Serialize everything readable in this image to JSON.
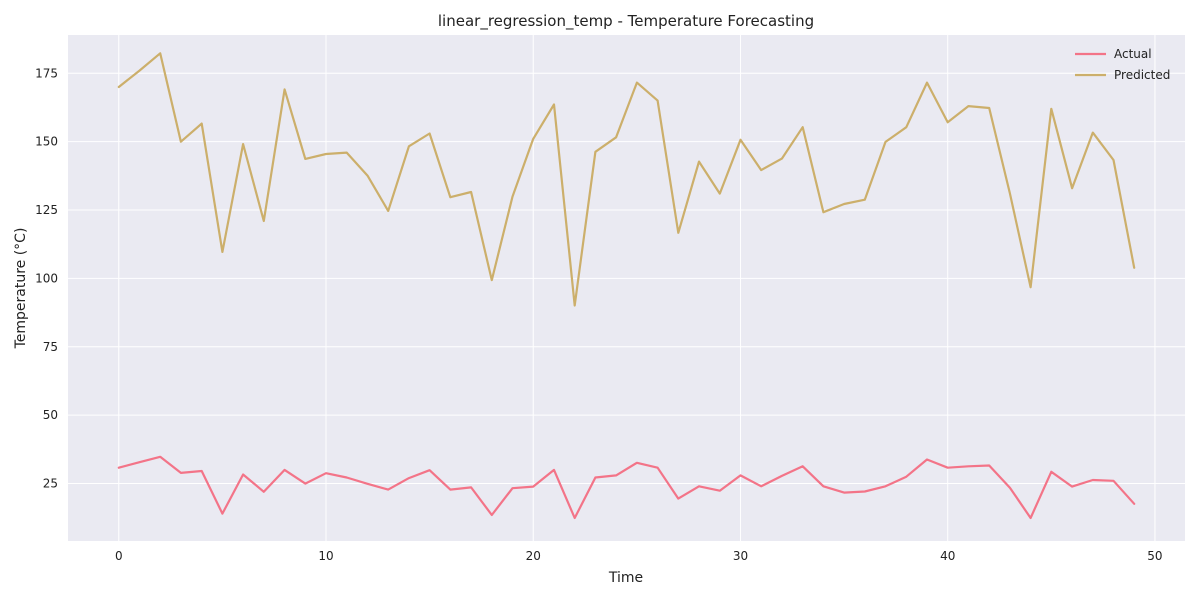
{
  "chart_data": {
    "type": "line",
    "title": "linear_regression_temp - Temperature Forecasting",
    "xlabel": "Time",
    "ylabel": "Temperature (°C)",
    "xlim": [
      -2.45,
      51.45
    ],
    "ylim": [
      4,
      189
    ],
    "xticks": [
      "0",
      "10",
      "20",
      "30",
      "40",
      "50"
    ],
    "yticks": [
      "25",
      "50",
      "75",
      "100",
      "125",
      "150",
      "175"
    ],
    "grid": true,
    "legend_position": "top-right",
    "background_color": "#eaeaf2",
    "x": [
      0,
      1,
      2,
      3,
      4,
      5,
      6,
      7,
      8,
      9,
      10,
      11,
      12,
      13,
      14,
      15,
      16,
      17,
      18,
      19,
      20,
      21,
      22,
      23,
      24,
      25,
      26,
      27,
      28,
      29,
      30,
      31,
      32,
      33,
      34,
      35,
      36,
      37,
      38,
      39,
      40,
      41,
      42,
      43,
      44,
      45,
      46,
      47,
      48,
      49
    ],
    "series": [
      {
        "name": "Actual",
        "color": "#f37488",
        "values": [
          30.8,
          32.8,
          34.8,
          28.9,
          29.6,
          14.0,
          28.3,
          22.0,
          30.0,
          25.0,
          28.8,
          27.2,
          24.9,
          22.8,
          27.0,
          29.9,
          22.8,
          23.6,
          13.5,
          23.3,
          23.9,
          30.0,
          12.4,
          27.2,
          28.0,
          32.6,
          30.8,
          19.5,
          24.0,
          22.4,
          28.0,
          24.0,
          27.8,
          31.3,
          24.0,
          21.7,
          22.1,
          24.0,
          27.5,
          33.8,
          30.8,
          31.3,
          31.6,
          23.5,
          12.4,
          29.3,
          23.9,
          26.3,
          26.0,
          17.6
        ]
      },
      {
        "name": "Predicted",
        "color": "#ccaf6b",
        "values": [
          170,
          176,
          182.3,
          150,
          156.6,
          109.7,
          149.1,
          121,
          169.1,
          143.7,
          145.5,
          146,
          137.6,
          124.7,
          148.3,
          153,
          129.7,
          131.6,
          99.4,
          129.9,
          151,
          163.6,
          90.1,
          146.3,
          151.6,
          171.6,
          165,
          116.7,
          142.7,
          131,
          150.7,
          139.6,
          143.8,
          155.3,
          124.2,
          127.2,
          128.8,
          149.9,
          155.3,
          171.6,
          157.1,
          163,
          162.3,
          131.1,
          96.8,
          162,
          133,
          153.3,
          143.3,
          103.9
        ]
      }
    ]
  }
}
